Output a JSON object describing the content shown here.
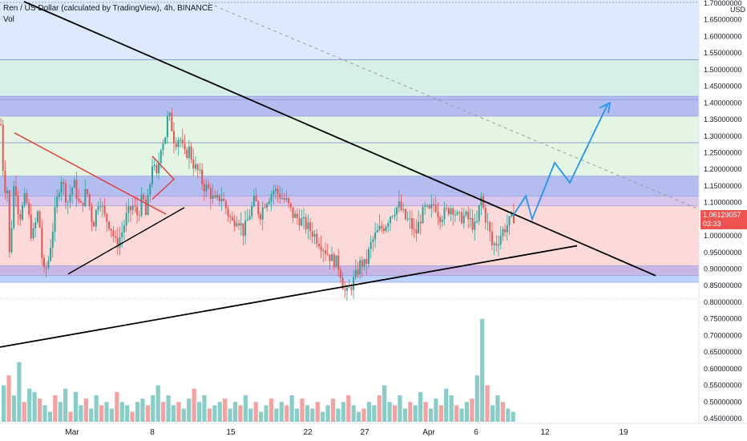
{
  "header": {
    "title": "Ren / US Dollar (calculated by TradingView), 4h, BINANCE",
    "volume_label": "Vol",
    "currency": "USD"
  },
  "price_badge": {
    "price": "1.06129057",
    "countdown": "03:33"
  },
  "colors": {
    "up": "#26a69a",
    "down": "#ef5350",
    "trendline": "#000000",
    "pattern_red": "#e53935",
    "projection": "#2196f3",
    "zone_blue_light": "#dbeafd",
    "zone_teal": "#d6efe8",
    "zone_indigo": "#b4bdf0",
    "zone_green": "#e5f5e3",
    "zone_red": "#fcdada"
  },
  "chart_data": {
    "type": "candlestick",
    "title": "Ren / US Dollar (calculated by TradingView), 4h, BINANCE",
    "xlabel": "",
    "ylabel": "",
    "x_ticks": [
      "Mar",
      "8",
      "15",
      "22",
      "27",
      "Apr",
      "6",
      "12",
      "19"
    ],
    "y_ticks": [
      "1.70000000",
      "1.65000000",
      "1.60000000",
      "1.55000000",
      "1.50000000",
      "1.45000000",
      "1.40000000",
      "1.35000000",
      "1.30000000",
      "1.25000000",
      "1.20000000",
      "1.15000000",
      "1.10000000",
      "1.05000000",
      "1.00000000",
      "0.95000000",
      "0.90000000",
      "0.85000000",
      "0.80000000",
      "0.75000000",
      "0.70000000",
      "0.65000000",
      "0.60000000",
      "0.55000000",
      "0.50000000",
      "0.45000000"
    ],
    "ylim": [
      0.43,
      1.71
    ],
    "last_price": 1.06129057,
    "price_path": [
      [
        0,
        1.3
      ],
      [
        2,
        1.37
      ],
      [
        5,
        1.08
      ],
      [
        8,
        1.22
      ],
      [
        12,
        0.93
      ],
      [
        18,
        1.18
      ],
      [
        24,
        1.05
      ],
      [
        32,
        1.12
      ],
      [
        40,
        0.99
      ],
      [
        48,
        1.08
      ],
      [
        54,
        0.88
      ],
      [
        60,
        0.92
      ],
      [
        68,
        1.06
      ],
      [
        76,
        1.18
      ],
      [
        84,
        1.1
      ],
      [
        92,
        1.16
      ],
      [
        100,
        1.08
      ],
      [
        108,
        1.14
      ],
      [
        116,
        1.03
      ],
      [
        124,
        1.12
      ],
      [
        130,
        1.06
      ],
      [
        138,
        1.03
      ],
      [
        145,
        0.97
      ],
      [
        152,
        1.01
      ],
      [
        158,
        1.06
      ],
      [
        166,
        1.09
      ],
      [
        172,
        1.06
      ],
      [
        178,
        1.12
      ],
      [
        182,
        1.06
      ],
      [
        186,
        1.13
      ],
      [
        190,
        1.22
      ],
      [
        196,
        1.17
      ],
      [
        200,
        1.27
      ],
      [
        206,
        1.3
      ],
      [
        210,
        1.37
      ],
      [
        214,
        1.33
      ],
      [
        218,
        1.28
      ],
      [
        224,
        1.3
      ],
      [
        230,
        1.24
      ],
      [
        236,
        1.26
      ],
      [
        242,
        1.21
      ],
      [
        248,
        1.19
      ],
      [
        254,
        1.15
      ],
      [
        260,
        1.14
      ],
      [
        268,
        1.1
      ],
      [
        276,
        1.12
      ],
      [
        284,
        1.07
      ],
      [
        290,
        1.04
      ],
      [
        296,
        1.06
      ],
      [
        304,
        1.01
      ],
      [
        312,
        1.07
      ],
      [
        318,
        1.11
      ],
      [
        324,
        1.06
      ],
      [
        330,
        1.1
      ],
      [
        336,
        1.12
      ],
      [
        342,
        1.14
      ],
      [
        350,
        1.12
      ],
      [
        358,
        1.1
      ],
      [
        366,
        1.06
      ],
      [
        374,
        1.05
      ],
      [
        382,
        1.03
      ],
      [
        390,
        1.01
      ],
      [
        396,
        0.99
      ],
      [
        402,
        0.97
      ],
      [
        408,
        0.95
      ],
      [
        414,
        0.93
      ],
      [
        420,
        0.92
      ],
      [
        424,
        0.9
      ],
      [
        428,
        0.85
      ],
      [
        432,
        0.82
      ],
      [
        438,
        0.85
      ],
      [
        444,
        0.88
      ],
      [
        450,
        0.92
      ],
      [
        456,
        0.91
      ],
      [
        462,
        0.97
      ],
      [
        468,
        1.0
      ],
      [
        474,
        1.02
      ],
      [
        480,
        1.03
      ],
      [
        486,
        1.06
      ],
      [
        492,
        1.08
      ],
      [
        498,
        1.09
      ],
      [
        506,
        1.05
      ],
      [
        512,
        1.04
      ],
      [
        518,
        1.0
      ],
      [
        524,
        1.05
      ],
      [
        530,
        1.08
      ],
      [
        536,
        1.07
      ],
      [
        542,
        1.1
      ],
      [
        548,
        1.06
      ],
      [
        556,
        1.07
      ],
      [
        564,
        1.09
      ],
      [
        572,
        1.05
      ],
      [
        580,
        1.06
      ],
      [
        588,
        1.04
      ],
      [
        594,
        1.02
      ],
      [
        600,
        1.12
      ],
      [
        604,
        1.07
      ],
      [
        610,
        1.02
      ],
      [
        614,
        0.97
      ],
      [
        620,
        0.98
      ],
      [
        626,
        1.01
      ],
      [
        632,
        1.03
      ],
      [
        638,
        1.05
      ],
      [
        642,
        1.06
      ]
    ],
    "series": [
      {
        "name": "Vol",
        "type": "volume",
        "values": [
          0.55,
          0.58,
          0.52,
          0.62,
          0.5,
          0.54,
          0.53,
          0.51,
          0.49,
          0.47,
          0.52,
          0.5,
          0.54,
          0.47,
          0.53,
          0.49,
          0.51,
          0.48,
          0.52,
          0.49,
          0.5,
          0.48,
          0.53,
          0.5,
          0.49,
          0.47,
          0.5,
          0.51,
          0.49,
          0.52,
          0.55,
          0.5,
          0.52,
          0.49,
          0.5,
          0.48,
          0.51,
          0.54,
          0.5,
          0.52,
          0.48,
          0.49,
          0.5,
          0.51,
          0.48,
          0.5,
          0.49,
          0.52,
          0.48,
          0.5,
          0.47,
          0.49,
          0.51,
          0.48,
          0.5,
          0.49,
          0.52,
          0.48,
          0.51,
          0.49,
          0.48,
          0.5,
          0.47,
          0.49,
          0.51,
          0.48,
          0.5,
          0.52,
          0.49,
          0.47,
          0.48,
          0.5,
          0.49,
          0.52,
          0.55,
          0.5,
          0.49,
          0.52,
          0.48,
          0.5,
          0.49,
          0.53,
          0.5,
          0.48,
          0.51,
          0.49,
          0.54,
          0.52,
          0.49,
          0.48,
          0.5,
          0.51,
          0.58,
          0.75,
          0.55,
          0.49,
          0.52,
          0.5,
          0.48,
          0.47
        ]
      }
    ],
    "zones": [
      {
        "from": 1.53,
        "to": 1.71,
        "color": "#dbeafd"
      },
      {
        "from": 1.42,
        "to": 1.53,
        "color": "#d6efe8"
      },
      {
        "from": 1.36,
        "to": 1.42,
        "color": "#b4bdf0"
      },
      {
        "from": 1.18,
        "to": 1.36,
        "color": "#e5f5e3"
      },
      {
        "from": 1.12,
        "to": 1.18,
        "color": "#b4bdf0"
      },
      {
        "from": 1.09,
        "to": 1.12,
        "color": "#d8c6ec"
      },
      {
        "from": 0.91,
        "to": 1.09,
        "color": "#fcdada"
      },
      {
        "from": 0.88,
        "to": 0.91,
        "color": "#c8b6e6"
      },
      {
        "from": 0.86,
        "to": 0.88,
        "color": "#bcd4fb"
      }
    ]
  }
}
